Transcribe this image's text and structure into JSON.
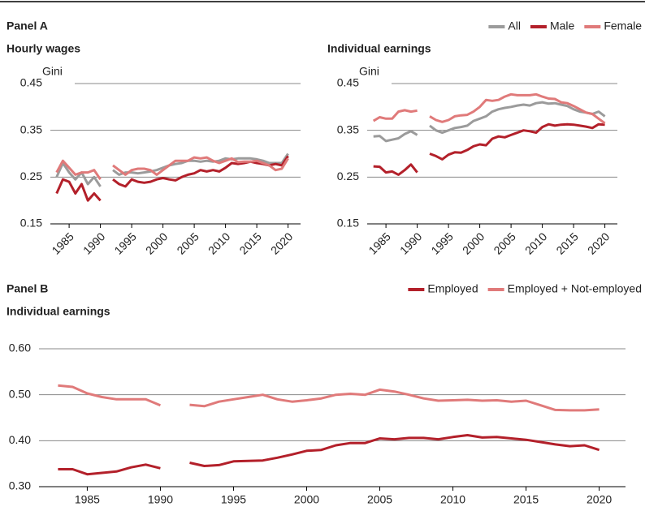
{
  "chart_data": [
    {
      "type": "line",
      "panel": "Panel A",
      "title": "Hourly wages",
      "ylabel": "Gini",
      "legend": "top right",
      "grid": true,
      "x": [
        1983,
        1984,
        1985,
        1986,
        1987,
        1988,
        1989,
        1990,
        1991,
        1992,
        1993,
        1994,
        1995,
        1996,
        1997,
        1998,
        1999,
        2000,
        2001,
        2002,
        2003,
        2004,
        2005,
        2006,
        2007,
        2008,
        2009,
        2010,
        2011,
        2012,
        2013,
        2014,
        2015,
        2016,
        2017,
        2018,
        2019,
        2020
      ],
      "xlim": [
        1982,
        2022
      ],
      "xticks": [
        1985,
        1990,
        1995,
        2000,
        2005,
        2010,
        2015,
        2020
      ],
      "ylim": [
        0.15,
        0.45
      ],
      "yticks": [
        0.15,
        0.25,
        0.35,
        0.45
      ],
      "series": [
        {
          "name": "All",
          "color": "#9b9b9b",
          "values": [
            0.25,
            0.28,
            0.26,
            0.245,
            0.26,
            0.235,
            0.25,
            0.23,
            null,
            0.265,
            0.255,
            0.26,
            0.26,
            0.258,
            0.26,
            0.262,
            0.265,
            0.27,
            0.275,
            0.278,
            0.28,
            0.285,
            0.285,
            0.283,
            0.285,
            0.283,
            0.285,
            0.29,
            0.288,
            0.29,
            0.29,
            0.29,
            0.288,
            0.285,
            0.28,
            0.28,
            0.28,
            0.3
          ]
        },
        {
          "name": "Male",
          "color": "#b3202a",
          "values": [
            0.215,
            0.245,
            0.24,
            0.215,
            0.235,
            0.2,
            0.215,
            0.2,
            null,
            0.245,
            0.235,
            0.23,
            0.245,
            0.24,
            0.238,
            0.24,
            0.245,
            0.248,
            0.245,
            0.243,
            0.25,
            0.255,
            0.258,
            0.265,
            0.262,
            0.265,
            0.262,
            0.27,
            0.28,
            0.278,
            0.28,
            0.283,
            0.28,
            0.278,
            0.275,
            0.278,
            0.275,
            0.295
          ]
        },
        {
          "name": "Female",
          "color": "#e07a7a",
          "values": [
            0.26,
            0.285,
            0.27,
            0.255,
            0.26,
            0.26,
            0.265,
            0.245,
            null,
            0.275,
            0.265,
            0.255,
            0.265,
            0.268,
            0.268,
            0.265,
            0.255,
            0.265,
            0.275,
            0.285,
            0.285,
            0.285,
            0.292,
            0.29,
            0.292,
            0.285,
            0.28,
            0.285,
            0.29,
            0.282,
            0.283,
            0.283,
            0.285,
            0.28,
            0.275,
            0.265,
            0.268,
            0.29
          ]
        }
      ]
    },
    {
      "type": "line",
      "title": "Individual earnings",
      "ylabel": "Gini",
      "grid": true,
      "x": [
        1983,
        1984,
        1985,
        1986,
        1987,
        1988,
        1989,
        1990,
        1991,
        1992,
        1993,
        1994,
        1995,
        1996,
        1997,
        1998,
        1999,
        2000,
        2001,
        2002,
        2003,
        2004,
        2005,
        2006,
        2007,
        2008,
        2009,
        2010,
        2011,
        2012,
        2013,
        2014,
        2015,
        2016,
        2017,
        2018,
        2019,
        2020
      ],
      "xlim": [
        1982,
        2022
      ],
      "xticks": [
        1985,
        1990,
        1995,
        2000,
        2005,
        2010,
        2015,
        2020
      ],
      "ylim": [
        0.15,
        0.45
      ],
      "yticks": [
        0.15,
        0.25,
        0.35,
        0.45
      ],
      "series": [
        {
          "name": "All",
          "color": "#9b9b9b",
          "values": [
            0.337,
            0.338,
            0.327,
            0.33,
            0.333,
            0.342,
            0.348,
            0.34,
            null,
            0.36,
            0.35,
            0.345,
            0.35,
            0.355,
            0.357,
            0.36,
            0.37,
            0.375,
            0.38,
            0.39,
            0.395,
            0.398,
            0.4,
            0.403,
            0.405,
            0.403,
            0.408,
            0.41,
            0.407,
            0.408,
            0.405,
            0.402,
            0.395,
            0.39,
            0.388,
            0.385,
            0.39,
            0.38
          ]
        },
        {
          "name": "Male",
          "color": "#b3202a",
          "values": [
            0.273,
            0.272,
            0.26,
            0.262,
            0.255,
            0.265,
            0.277,
            0.26,
            null,
            0.3,
            0.295,
            0.288,
            0.298,
            0.303,
            0.302,
            0.308,
            0.316,
            0.32,
            0.318,
            0.332,
            0.337,
            0.335,
            0.34,
            0.345,
            0.35,
            0.348,
            0.345,
            0.357,
            0.363,
            0.36,
            0.362,
            0.363,
            0.362,
            0.36,
            0.358,
            0.355,
            0.363,
            0.362
          ]
        },
        {
          "name": "Female",
          "color": "#e07a7a",
          "values": [
            0.37,
            0.378,
            0.375,
            0.375,
            0.39,
            0.393,
            0.39,
            0.392,
            null,
            0.38,
            0.372,
            0.368,
            0.372,
            0.38,
            0.382,
            0.383,
            0.39,
            0.4,
            0.415,
            0.413,
            0.415,
            0.422,
            0.427,
            0.425,
            0.425,
            0.425,
            0.427,
            0.422,
            0.418,
            0.417,
            0.41,
            0.408,
            0.402,
            0.395,
            0.388,
            0.385,
            0.375,
            0.365
          ]
        }
      ]
    },
    {
      "type": "line",
      "panel": "Panel B",
      "title": "Individual earnings",
      "legend": "top right",
      "grid": true,
      "x": [
        1983,
        1984,
        1985,
        1986,
        1987,
        1988,
        1989,
        1990,
        1991,
        1992,
        1993,
        1994,
        1995,
        1996,
        1997,
        1998,
        1999,
        2000,
        2001,
        2002,
        2003,
        2004,
        2005,
        2006,
        2007,
        2008,
        2009,
        2010,
        2011,
        2012,
        2013,
        2014,
        2015,
        2016,
        2017,
        2018,
        2019,
        2020
      ],
      "xlim": [
        1981.7,
        2021.8
      ],
      "xticks": [
        1985,
        1990,
        1995,
        2000,
        2005,
        2010,
        2015,
        2020
      ],
      "ylim": [
        0.3,
        0.6
      ],
      "yticks": [
        {
          "value": 0.3,
          "label": "0.30"
        },
        {
          "value": 0.4,
          "label": "0.40"
        },
        {
          "value": 0.5,
          "label": "0.50"
        },
        {
          "value": 0.6,
          "label": "0.60"
        }
      ],
      "series": [
        {
          "name": "Employed",
          "color": "#b3202a",
          "values": [
            0.338,
            0.338,
            0.327,
            0.33,
            0.333,
            0.342,
            0.348,
            0.34,
            null,
            0.352,
            0.345,
            0.347,
            0.355,
            0.356,
            0.357,
            0.363,
            0.37,
            0.378,
            0.38,
            0.39,
            0.395,
            0.395,
            0.405,
            0.403,
            0.406,
            0.406,
            0.403,
            0.408,
            0.412,
            0.407,
            0.408,
            0.405,
            0.402,
            0.397,
            0.392,
            0.388,
            0.39,
            0.38
          ]
        },
        {
          "name": "Employed + Not-employed",
          "color": "#e07a7a",
          "values": [
            0.52,
            0.517,
            0.503,
            0.495,
            0.49,
            0.49,
            0.49,
            0.477,
            null,
            0.478,
            0.475,
            0.485,
            0.49,
            0.495,
            0.5,
            0.49,
            0.485,
            0.488,
            0.492,
            0.5,
            0.502,
            0.5,
            0.511,
            0.507,
            0.5,
            0.492,
            0.487,
            0.488,
            0.489,
            0.487,
            0.488,
            0.485,
            0.487,
            0.477,
            0.467,
            0.466,
            0.466,
            0.468
          ]
        }
      ]
    }
  ]
}
